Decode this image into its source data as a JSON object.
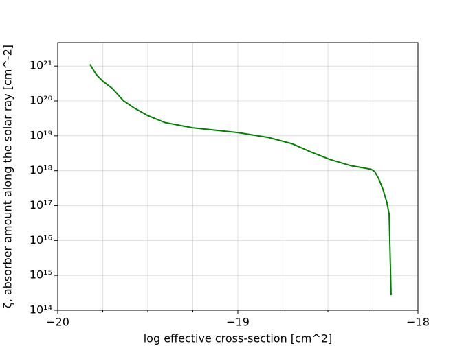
{
  "chart_data": {
    "type": "line",
    "xlabel": "log effective cross-section [cm^2]",
    "ylabel": "ζ, absorber amount along the solar ray [cm^-2]",
    "xlim": [
      -20,
      -18
    ],
    "xticks": [
      {
        "value": -20,
        "label": "−20"
      },
      {
        "value": -19,
        "label": "−19"
      },
      {
        "value": -18,
        "label": "−18"
      }
    ],
    "xminorticks": [
      -19.75,
      -19.5,
      -19.25,
      -18.75,
      -18.5,
      -18.25
    ],
    "ylim": [
      100000000000000.0,
      4.7e+21
    ],
    "yscale": "log",
    "yticks": [
      {
        "value": 100000000000000.0,
        "label": "10¹⁴"
      },
      {
        "value": 1000000000000000.0,
        "label": "10¹⁵"
      },
      {
        "value": 1e+16,
        "label": "10¹⁶"
      },
      {
        "value": 1e+17,
        "label": "10¹⁷"
      },
      {
        "value": 1e+18,
        "label": "10¹⁸"
      },
      {
        "value": 1e+19,
        "label": "10¹⁹"
      },
      {
        "value": 1e+20,
        "label": "10²⁰"
      },
      {
        "value": 1e+21,
        "label": "10²¹"
      }
    ],
    "grid": true,
    "color": "#008000",
    "x": [
      -19.821,
      -19.786,
      -19.748,
      -19.698,
      -19.634,
      -19.576,
      -19.5,
      -19.405,
      -19.252,
      -19.0,
      -18.832,
      -18.698,
      -18.603,
      -18.489,
      -18.374,
      -18.26,
      -18.24,
      -18.218,
      -18.195,
      -18.172,
      -18.16,
      -18.149
    ],
    "values": [
      1.12e+21,
      5.7e+20,
      3.6e+20,
      2.3e+20,
      1e+20,
      6.3e+19,
      3.8e+19,
      2.4e+19,
      1.7e+19,
      1.24e+19,
      9e+18,
      5.9e+18,
      3.6e+18,
      2.1e+18,
      1.4e+18,
      1.1e+18,
      9.4e+17,
      5.9e+17,
      3e+17,
      1.2e+17,
      5.6e+16,
      270000000000000.0
    ]
  }
}
